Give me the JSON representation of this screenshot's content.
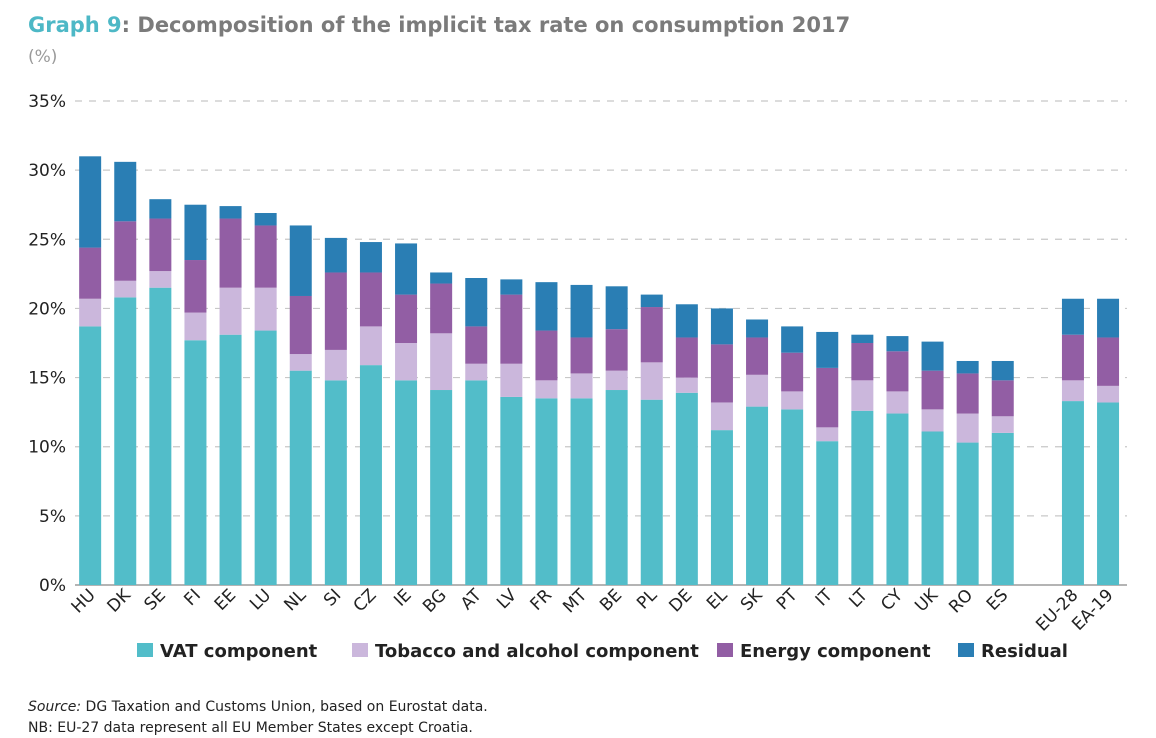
{
  "title": {
    "prefix": "Graph 9",
    "text": ": Decomposition of the implicit tax rate on consumption 2017"
  },
  "unit": "(%)",
  "colors": {
    "vat": "#52bdc9",
    "tobacco": "#cbb7dc",
    "energy": "#925ea4",
    "residual": "#2a7eb4",
    "title_accent": "#4db8c6"
  },
  "chart_data": {
    "type": "bar",
    "stacked": true,
    "title": "Decomposition of the implicit tax rate on consumption 2017",
    "ylabel": "(%)",
    "ylim": [
      0,
      35
    ],
    "yticks": [
      "0%",
      "5%",
      "10%",
      "15%",
      "20%",
      "25%",
      "30%",
      "35%"
    ],
    "grid": true,
    "legend_position": "bottom",
    "categories": [
      "HU",
      "DK",
      "SE",
      "FI",
      "EE",
      "LU",
      "NL",
      "SI",
      "CZ",
      "IE",
      "BG",
      "AT",
      "LV",
      "FR",
      "MT",
      "BE",
      "PL",
      "DE",
      "EL",
      "SK",
      "PT",
      "IT",
      "LT",
      "CY",
      "UK",
      "RO",
      "ES",
      "EU-28",
      "EA-19"
    ],
    "series": [
      {
        "name": "VAT component",
        "values": [
          18.7,
          20.8,
          21.5,
          17.7,
          18.1,
          18.4,
          15.5,
          14.8,
          15.9,
          14.8,
          14.1,
          14.8,
          13.6,
          13.5,
          13.5,
          14.1,
          13.4,
          13.9,
          11.2,
          12.9,
          12.7,
          10.4,
          12.6,
          12.4,
          11.1,
          10.3,
          11.0,
          13.3,
          13.2
        ]
      },
      {
        "name": "Tobacco and alcohol component",
        "values": [
          2.0,
          1.2,
          1.2,
          2.0,
          3.4,
          3.1,
          1.2,
          2.2,
          2.8,
          2.7,
          4.1,
          1.2,
          2.4,
          1.3,
          1.8,
          1.4,
          2.7,
          1.1,
          2.0,
          2.3,
          1.3,
          1.0,
          2.2,
          1.6,
          1.6,
          2.1,
          1.2,
          1.5,
          1.2
        ]
      },
      {
        "name": "Energy component",
        "values": [
          3.7,
          4.3,
          3.8,
          3.8,
          5.0,
          4.5,
          4.2,
          5.6,
          3.9,
          3.5,
          3.6,
          2.7,
          5.0,
          3.6,
          2.6,
          3.0,
          4.0,
          2.9,
          4.2,
          2.7,
          2.8,
          4.3,
          2.7,
          2.9,
          2.8,
          2.9,
          2.6,
          3.3,
          3.5
        ]
      },
      {
        "name": "Residual",
        "values": [
          6.6,
          4.3,
          1.4,
          4.0,
          0.9,
          0.9,
          5.1,
          2.5,
          2.2,
          3.7,
          0.8,
          3.5,
          1.1,
          3.5,
          3.8,
          3.1,
          0.9,
          2.4,
          2.6,
          1.3,
          1.9,
          2.6,
          0.6,
          1.1,
          2.1,
          0.9,
          1.4,
          2.6,
          2.8
        ]
      }
    ]
  },
  "notes": {
    "source_label": "Source:",
    "source_text": " DG Taxation and Customs Union, based on Eurostat data.",
    "nb": "NB: EU-27 data represent all EU Member States except Croatia."
  }
}
